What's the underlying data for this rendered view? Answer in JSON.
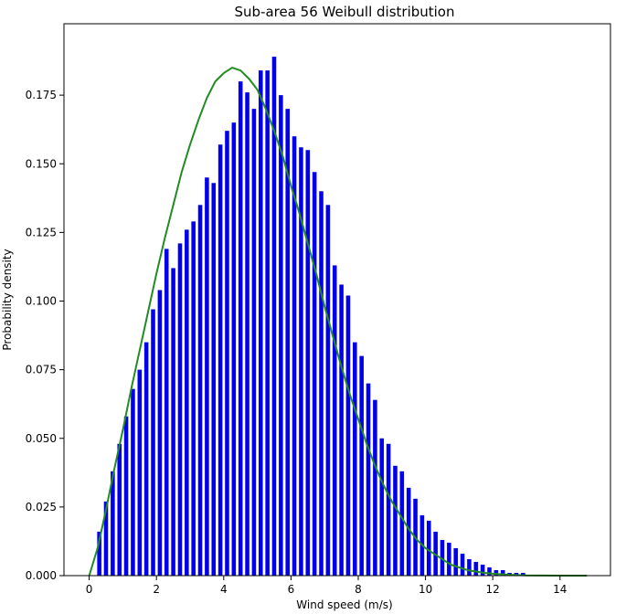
{
  "chart_data": {
    "type": "bar",
    "title": "Sub-area 56 Weibull distribution",
    "xlabel": "Wind speed (m/s)",
    "ylabel": "Probability density",
    "xlim": [
      -0.75,
      15.5
    ],
    "ylim": [
      0,
      0.201
    ],
    "x_ticks": [
      0,
      2,
      4,
      6,
      8,
      10,
      12,
      14
    ],
    "y_ticks": [
      0.0,
      0.025,
      0.05,
      0.075,
      0.1,
      0.125,
      0.15,
      0.175
    ],
    "y_tick_labels": [
      "0.000",
      "0.025",
      "0.050",
      "0.075",
      "0.100",
      "0.125",
      "0.150",
      "0.175"
    ],
    "grid": false,
    "legend": "none",
    "colors": {
      "bars": "#0000ee",
      "curve": "#228b22",
      "axes": "#000000"
    },
    "histogram": {
      "name": "",
      "bin_width": 0.2,
      "x": [
        0.3,
        0.5,
        0.7,
        0.9,
        1.1,
        1.3,
        1.5,
        1.7,
        1.9,
        2.1,
        2.3,
        2.5,
        2.7,
        2.9,
        3.1,
        3.3,
        3.5,
        3.7,
        3.9,
        4.1,
        4.3,
        4.5,
        4.7,
        4.9,
        5.1,
        5.3,
        5.5,
        5.7,
        5.9,
        6.1,
        6.3,
        6.5,
        6.7,
        6.9,
        7.1,
        7.3,
        7.5,
        7.7,
        7.9,
        8.1,
        8.3,
        8.5,
        8.7,
        8.9,
        9.1,
        9.3,
        9.5,
        9.7,
        9.9,
        10.1,
        10.3,
        10.5,
        10.7,
        10.9,
        11.1,
        11.3,
        11.5,
        11.7,
        11.9,
        12.1,
        12.3,
        12.5,
        12.7,
        12.9
      ],
      "values": [
        0.016,
        0.027,
        0.038,
        0.048,
        0.058,
        0.068,
        0.075,
        0.085,
        0.097,
        0.104,
        0.119,
        0.112,
        0.121,
        0.126,
        0.129,
        0.135,
        0.145,
        0.143,
        0.157,
        0.162,
        0.165,
        0.18,
        0.176,
        0.17,
        0.184,
        0.184,
        0.189,
        0.175,
        0.17,
        0.16,
        0.156,
        0.155,
        0.147,
        0.14,
        0.135,
        0.113,
        0.106,
        0.102,
        0.085,
        0.08,
        0.07,
        0.064,
        0.05,
        0.048,
        0.04,
        0.038,
        0.032,
        0.028,
        0.022,
        0.02,
        0.016,
        0.013,
        0.012,
        0.01,
        0.008,
        0.006,
        0.005,
        0.004,
        0.003,
        0.002,
        0.002,
        0.001,
        0.001,
        0.001
      ]
    },
    "curve": {
      "name": "",
      "x": [
        0,
        0.25,
        0.5,
        0.75,
        1,
        1.25,
        1.5,
        1.75,
        2,
        2.25,
        2.5,
        2.75,
        3,
        3.25,
        3.5,
        3.75,
        4,
        4.25,
        4.5,
        4.75,
        5,
        5.25,
        5.5,
        5.75,
        6,
        6.25,
        6.5,
        6.75,
        7,
        7.25,
        7.5,
        7.75,
        8,
        8.25,
        8.5,
        8.75,
        9,
        9.25,
        9.5,
        9.75,
        10,
        10.25,
        10.5,
        10.75,
        11,
        11.25,
        11.5,
        11.75,
        12,
        12.25,
        12.5,
        12.75,
        13,
        13.5,
        14,
        14.5,
        14.8
      ],
      "y": [
        0.0,
        0.01,
        0.024,
        0.039,
        0.053,
        0.068,
        0.082,
        0.096,
        0.11,
        0.123,
        0.135,
        0.147,
        0.157,
        0.166,
        0.174,
        0.18,
        0.183,
        0.185,
        0.184,
        0.181,
        0.177,
        0.17,
        0.162,
        0.153,
        0.142,
        0.132,
        0.121,
        0.11,
        0.098,
        0.087,
        0.076,
        0.066,
        0.057,
        0.048,
        0.04,
        0.033,
        0.027,
        0.022,
        0.017,
        0.013,
        0.01,
        0.008,
        0.006,
        0.004,
        0.003,
        0.002,
        0.0015,
        0.001,
        0.0007,
        0.0005,
        0.0003,
        0.0002,
        0.0001,
        5e-05,
        2e-05,
        1e-05,
        0.0
      ]
    }
  }
}
